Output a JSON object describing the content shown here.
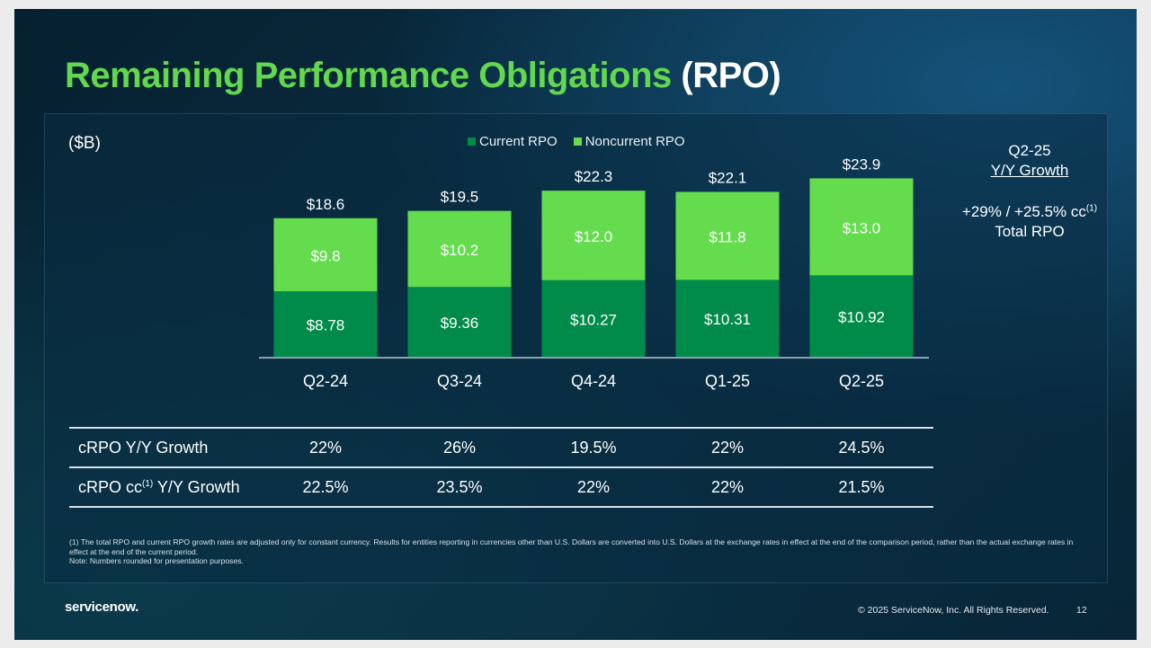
{
  "title": {
    "green": "Remaining Performance Obligations",
    "white": "(RPO)"
  },
  "unit_label": "($B)",
  "colors": {
    "current": "#008b4a",
    "noncurrent": "#64dc4e",
    "green_title": "#62d84e"
  },
  "chart_data": {
    "type": "bar",
    "stacked": true,
    "categories": [
      "Q2-24",
      "Q3-24",
      "Q4-24",
      "Q1-25",
      "Q2-25"
    ],
    "series": [
      {
        "name": "Current RPO",
        "values": [
          8.78,
          9.36,
          10.27,
          10.31,
          10.92
        ],
        "labels": [
          "$8.78",
          "$9.36",
          "$10.27",
          "$10.31",
          "$10.92"
        ]
      },
      {
        "name": "Noncurrent RPO",
        "values": [
          9.8,
          10.2,
          12.0,
          11.8,
          13.0
        ],
        "labels": [
          "$9.8",
          "$10.2",
          "$12.0",
          "$11.8",
          "$13.0"
        ]
      }
    ],
    "totals": [
      18.6,
      19.5,
      22.3,
      22.1,
      23.9
    ],
    "total_labels": [
      "$18.6",
      "$19.5",
      "$22.3",
      "$22.1",
      "$23.9"
    ],
    "ylabel": "($B)",
    "ylim": [
      0,
      25
    ],
    "legend": "top-center",
    "grid": false
  },
  "sidebar": {
    "heading": "Q2-25",
    "subheading": "Y/Y Growth",
    "growth_text": "+29% / +25.5% cc",
    "growth_sup": "(1)",
    "growth_label": "Total RPO"
  },
  "table": {
    "rows": [
      {
        "label": "cRPO Y/Y Growth",
        "label_sup": "",
        "label_suffix": "",
        "values": [
          "22%",
          "26%",
          "19.5%",
          "22%",
          "24.5%"
        ]
      },
      {
        "label": "cRPO cc",
        "label_sup": "(1)",
        "label_suffix": " Y/Y Growth",
        "values": [
          "22.5%",
          "23.5%",
          "22%",
          "22%",
          "21.5%"
        ]
      }
    ]
  },
  "footnotes": {
    "line1": "(1) The total RPO and current RPO growth rates are adjusted only for constant currency. Results for entities reporting in currencies other than U.S. Dollars are converted into U.S. Dollars at the exchange rates in effect at the end of the comparison period, rather than the actual exchange rates in effect at the end of the current period.",
    "line2": "Note: Numbers rounded for presentation purposes."
  },
  "footer": {
    "logo": "servicenow.",
    "copyright": "© 2025 ServiceNow, Inc. All Rights Reserved.",
    "page_number": "12"
  }
}
